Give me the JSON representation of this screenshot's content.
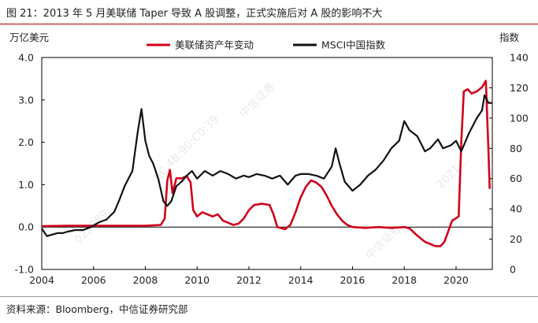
{
  "title": "图 21：2013 年 5 月美联储 Taper 导致 A 股调整，正式实施后对 A 股的影响不大",
  "source": "资料来源：Bloomberg，中信证券研究部",
  "watermark": [
    "中信证券",
    "023889",
    "6C:4B:90:C0:39",
    "2021-..."
  ],
  "chart_data": {
    "type": "line",
    "left_axis_title": "万亿美元",
    "right_axis_title": "指数",
    "x_ticks": [
      "2004",
      "2006",
      "2008",
      "2010",
      "2012",
      "2014",
      "2016",
      "2018",
      "2020"
    ],
    "y_left_ticks": [
      "-1.0",
      "0.0",
      "1.0",
      "2.0",
      "3.0",
      "4.0"
    ],
    "y_right_ticks": [
      "0",
      "20",
      "40",
      "60",
      "80",
      "100",
      "120",
      "140"
    ],
    "ylim_left": [
      -1,
      4
    ],
    "ylim_right": [
      0,
      140
    ],
    "xlim": [
      2004,
      2021.4
    ],
    "legend": "top",
    "series": [
      {
        "name": "美联储资产年变动",
        "axis": "left",
        "color": "#d0021b",
        "points": [
          [
            2004.0,
            0.02
          ],
          [
            2005.0,
            0.03
          ],
          [
            2006.0,
            0.03
          ],
          [
            2007.0,
            0.03
          ],
          [
            2008.0,
            0.03
          ],
          [
            2008.6,
            0.05
          ],
          [
            2008.75,
            0.2
          ],
          [
            2008.85,
            1.1
          ],
          [
            2008.95,
            1.35
          ],
          [
            2009.05,
            0.8
          ],
          [
            2009.2,
            1.15
          ],
          [
            2009.4,
            1.15
          ],
          [
            2009.6,
            1.2
          ],
          [
            2009.75,
            1.05
          ],
          [
            2009.85,
            0.4
          ],
          [
            2010.0,
            0.25
          ],
          [
            2010.2,
            0.35
          ],
          [
            2010.4,
            0.3
          ],
          [
            2010.6,
            0.25
          ],
          [
            2010.8,
            0.3
          ],
          [
            2011.0,
            0.15
          ],
          [
            2011.2,
            0.1
          ],
          [
            2011.4,
            0.05
          ],
          [
            2011.6,
            0.08
          ],
          [
            2011.8,
            0.2
          ],
          [
            2012.0,
            0.4
          ],
          [
            2012.2,
            0.52
          ],
          [
            2012.5,
            0.55
          ],
          [
            2012.8,
            0.52
          ],
          [
            2012.95,
            0.3
          ],
          [
            2013.1,
            0.0
          ],
          [
            2013.4,
            -0.05
          ],
          [
            2013.6,
            0.05
          ],
          [
            2013.8,
            0.35
          ],
          [
            2014.0,
            0.7
          ],
          [
            2014.2,
            0.95
          ],
          [
            2014.4,
            1.1
          ],
          [
            2014.6,
            1.05
          ],
          [
            2014.8,
            0.95
          ],
          [
            2015.0,
            0.75
          ],
          [
            2015.2,
            0.5
          ],
          [
            2015.4,
            0.3
          ],
          [
            2015.6,
            0.15
          ],
          [
            2015.8,
            0.05
          ],
          [
            2016.0,
            0.0
          ],
          [
            2016.5,
            -0.02
          ],
          [
            2017.0,
            0.0
          ],
          [
            2017.5,
            -0.02
          ],
          [
            2018.0,
            0.0
          ],
          [
            2018.2,
            -0.03
          ],
          [
            2018.5,
            -0.2
          ],
          [
            2018.8,
            -0.35
          ],
          [
            2019.0,
            -0.4
          ],
          [
            2019.2,
            -0.45
          ],
          [
            2019.4,
            -0.45
          ],
          [
            2019.55,
            -0.35
          ],
          [
            2019.7,
            -0.1
          ],
          [
            2019.85,
            0.15
          ],
          [
            2020.1,
            0.25
          ],
          [
            2020.2,
            2.0
          ],
          [
            2020.3,
            3.2
          ],
          [
            2020.45,
            3.25
          ],
          [
            2020.6,
            3.15
          ],
          [
            2020.8,
            3.2
          ],
          [
            2021.0,
            3.3
          ],
          [
            2021.15,
            3.45
          ],
          [
            2021.25,
            1.8
          ],
          [
            2021.3,
            0.9
          ]
        ]
      },
      {
        "name": "MSCI中国指数",
        "axis": "right",
        "color": "#111111",
        "points": [
          [
            2004.0,
            27
          ],
          [
            2004.2,
            22
          ],
          [
            2004.4,
            23
          ],
          [
            2004.6,
            24
          ],
          [
            2004.8,
            24
          ],
          [
            2005.0,
            25
          ],
          [
            2005.3,
            26
          ],
          [
            2005.6,
            26
          ],
          [
            2005.9,
            28
          ],
          [
            2006.2,
            31
          ],
          [
            2006.5,
            33
          ],
          [
            2006.8,
            38
          ],
          [
            2007.0,
            46
          ],
          [
            2007.2,
            55
          ],
          [
            2007.5,
            65
          ],
          [
            2007.7,
            90
          ],
          [
            2007.85,
            106
          ],
          [
            2008.0,
            85
          ],
          [
            2008.15,
            75
          ],
          [
            2008.3,
            70
          ],
          [
            2008.5,
            60
          ],
          [
            2008.7,
            45
          ],
          [
            2008.85,
            42
          ],
          [
            2009.0,
            45
          ],
          [
            2009.2,
            55
          ],
          [
            2009.4,
            58
          ],
          [
            2009.6,
            62
          ],
          [
            2009.8,
            65
          ],
          [
            2010.0,
            60
          ],
          [
            2010.3,
            65
          ],
          [
            2010.6,
            62
          ],
          [
            2010.9,
            65
          ],
          [
            2011.2,
            63
          ],
          [
            2011.5,
            60
          ],
          [
            2011.8,
            62
          ],
          [
            2012.0,
            61
          ],
          [
            2012.3,
            63
          ],
          [
            2012.6,
            62
          ],
          [
            2012.9,
            60
          ],
          [
            2013.2,
            62
          ],
          [
            2013.5,
            56
          ],
          [
            2013.8,
            62
          ],
          [
            2014.0,
            63
          ],
          [
            2014.3,
            63
          ],
          [
            2014.6,
            62
          ],
          [
            2014.9,
            60
          ],
          [
            2015.2,
            68
          ],
          [
            2015.35,
            80
          ],
          [
            2015.5,
            70
          ],
          [
            2015.7,
            58
          ],
          [
            2016.0,
            52
          ],
          [
            2016.3,
            56
          ],
          [
            2016.6,
            62
          ],
          [
            2016.9,
            66
          ],
          [
            2017.2,
            72
          ],
          [
            2017.5,
            80
          ],
          [
            2017.8,
            85
          ],
          [
            2018.0,
            98
          ],
          [
            2018.2,
            92
          ],
          [
            2018.5,
            88
          ],
          [
            2018.8,
            78
          ],
          [
            2019.0,
            80
          ],
          [
            2019.3,
            86
          ],
          [
            2019.5,
            80
          ],
          [
            2019.8,
            82
          ],
          [
            2020.0,
            85
          ],
          [
            2020.2,
            78
          ],
          [
            2020.5,
            90
          ],
          [
            2020.8,
            100
          ],
          [
            2021.0,
            105
          ],
          [
            2021.1,
            115
          ],
          [
            2021.25,
            110
          ],
          [
            2021.4,
            110
          ]
        ]
      }
    ]
  }
}
